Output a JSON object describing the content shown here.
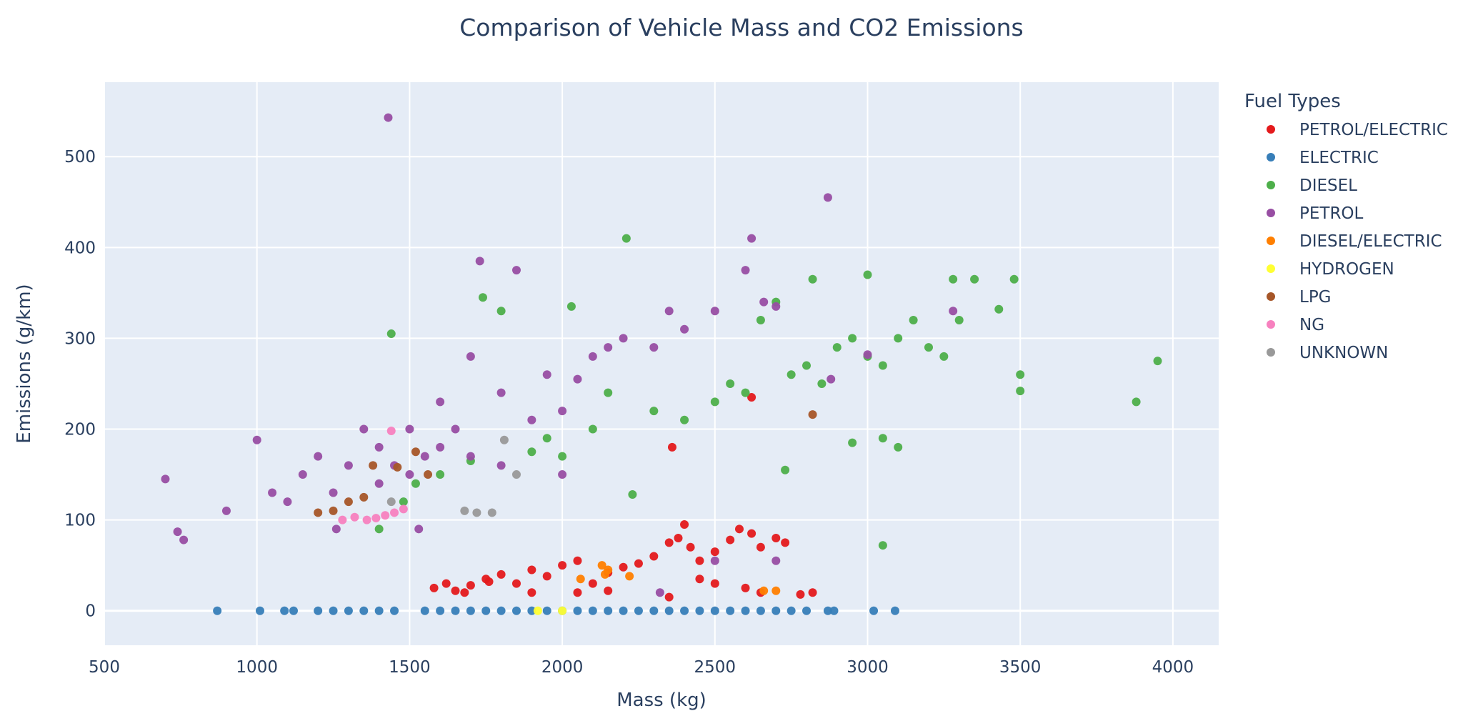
{
  "chart_data": {
    "type": "scatter",
    "title": "Comparison of Vehicle Mass and CO2 Emissions",
    "xlabel": "Mass (kg)",
    "ylabel": "Emissions (g/km)",
    "xlim": [
      500,
      4150
    ],
    "ylim": [
      -38,
      582
    ],
    "xticks": [
      500,
      1000,
      1500,
      2000,
      2500,
      3000,
      3500,
      4000
    ],
    "yticks": [
      0,
      100,
      200,
      300,
      400,
      500
    ],
    "grid": true,
    "plot_bg": "#e5ecf6",
    "legend": {
      "title": "Fuel Types",
      "position": "right"
    },
    "series": [
      {
        "name": "PETROL/ELECTRIC",
        "color": "#e41a1c",
        "points": [
          [
            1580,
            25
          ],
          [
            1620,
            30
          ],
          [
            1650,
            22
          ],
          [
            1700,
            28
          ],
          [
            1750,
            35
          ],
          [
            1800,
            40
          ],
          [
            1850,
            30
          ],
          [
            1900,
            45
          ],
          [
            1950,
            38
          ],
          [
            2000,
            50
          ],
          [
            2050,
            55
          ],
          [
            2100,
            30
          ],
          [
            2150,
            42
          ],
          [
            2200,
            48
          ],
          [
            2250,
            52
          ],
          [
            2300,
            60
          ],
          [
            2350,
            75
          ],
          [
            2380,
            80
          ],
          [
            2400,
            95
          ],
          [
            2420,
            70
          ],
          [
            2450,
            55
          ],
          [
            2500,
            65
          ],
          [
            2550,
            78
          ],
          [
            2580,
            90
          ],
          [
            2620,
            85
          ],
          [
            2650,
            70
          ],
          [
            2700,
            80
          ],
          [
            2730,
            75
          ],
          [
            2600,
            25
          ],
          [
            2650,
            20
          ],
          [
            2780,
            18
          ],
          [
            2820,
            20
          ],
          [
            2360,
            180
          ],
          [
            2620,
            235
          ],
          [
            1680,
            20
          ],
          [
            1760,
            32
          ],
          [
            1900,
            20
          ],
          [
            2050,
            20
          ],
          [
            2150,
            22
          ],
          [
            2350,
            15
          ],
          [
            2450,
            35
          ],
          [
            2500,
            30
          ]
        ]
      },
      {
        "name": "ELECTRIC",
        "color": "#377eb8",
        "points": [
          [
            870,
            0
          ],
          [
            1010,
            0
          ],
          [
            1090,
            0
          ],
          [
            1120,
            0
          ],
          [
            1200,
            0
          ],
          [
            1250,
            0
          ],
          [
            1300,
            0
          ],
          [
            1350,
            0
          ],
          [
            1400,
            0
          ],
          [
            1450,
            0
          ],
          [
            1550,
            0
          ],
          [
            1600,
            0
          ],
          [
            1650,
            0
          ],
          [
            1700,
            0
          ],
          [
            1750,
            0
          ],
          [
            1800,
            0
          ],
          [
            1850,
            0
          ],
          [
            1900,
            0
          ],
          [
            1950,
            0
          ],
          [
            2000,
            0
          ],
          [
            2050,
            0
          ],
          [
            2100,
            0
          ],
          [
            2150,
            0
          ],
          [
            2200,
            0
          ],
          [
            2250,
            0
          ],
          [
            2300,
            0
          ],
          [
            2350,
            0
          ],
          [
            2400,
            0
          ],
          [
            2450,
            0
          ],
          [
            2500,
            0
          ],
          [
            2550,
            0
          ],
          [
            2600,
            0
          ],
          [
            2650,
            0
          ],
          [
            2700,
            0
          ],
          [
            2750,
            0
          ],
          [
            2800,
            0
          ],
          [
            2870,
            0
          ],
          [
            2890,
            0
          ],
          [
            3020,
            0
          ],
          [
            3090,
            0
          ]
        ]
      },
      {
        "name": "DIESEL",
        "color": "#4daf4a",
        "points": [
          [
            1400,
            90
          ],
          [
            1440,
            305
          ],
          [
            1480,
            120
          ],
          [
            1520,
            140
          ],
          [
            1600,
            150
          ],
          [
            1700,
            165
          ],
          [
            1740,
            345
          ],
          [
            1800,
            330
          ],
          [
            1900,
            175
          ],
          [
            1950,
            190
          ],
          [
            2000,
            170
          ],
          [
            2030,
            335
          ],
          [
            2100,
            200
          ],
          [
            2150,
            240
          ],
          [
            2210,
            410
          ],
          [
            2230,
            128
          ],
          [
            2300,
            220
          ],
          [
            2400,
            210
          ],
          [
            2500,
            230
          ],
          [
            2550,
            250
          ],
          [
            2600,
            240
          ],
          [
            2650,
            320
          ],
          [
            2700,
            340
          ],
          [
            2730,
            155
          ],
          [
            2750,
            260
          ],
          [
            2800,
            270
          ],
          [
            2820,
            365
          ],
          [
            2850,
            250
          ],
          [
            2900,
            290
          ],
          [
            2950,
            300
          ],
          [
            3000,
            370
          ],
          [
            3000,
            280
          ],
          [
            3050,
            270
          ],
          [
            3050,
            190
          ],
          [
            3100,
            300
          ],
          [
            3150,
            320
          ],
          [
            3200,
            290
          ],
          [
            3250,
            280
          ],
          [
            3280,
            365
          ],
          [
            3300,
            320
          ],
          [
            3350,
            365
          ],
          [
            3430,
            332
          ],
          [
            3480,
            365
          ],
          [
            3500,
            260
          ],
          [
            3500,
            242
          ],
          [
            3050,
            72
          ],
          [
            3880,
            230
          ],
          [
            3950,
            275
          ],
          [
            2950,
            185
          ],
          [
            3100,
            180
          ]
        ]
      },
      {
        "name": "PETROL",
        "color": "#984ea3",
        "points": [
          [
            700,
            145
          ],
          [
            740,
            87
          ],
          [
            760,
            78
          ],
          [
            900,
            110
          ],
          [
            1000,
            188
          ],
          [
            1050,
            130
          ],
          [
            1100,
            120
          ],
          [
            1150,
            150
          ],
          [
            1200,
            170
          ],
          [
            1250,
            130
          ],
          [
            1300,
            160
          ],
          [
            1350,
            200
          ],
          [
            1400,
            180
          ],
          [
            1430,
            543
          ],
          [
            1450,
            160
          ],
          [
            1500,
            200
          ],
          [
            1550,
            170
          ],
          [
            1600,
            230
          ],
          [
            1650,
            200
          ],
          [
            1700,
            280
          ],
          [
            1730,
            385
          ],
          [
            1800,
            240
          ],
          [
            1850,
            375
          ],
          [
            1900,
            210
          ],
          [
            1950,
            260
          ],
          [
            2000,
            220
          ],
          [
            2050,
            255
          ],
          [
            2100,
            280
          ],
          [
            2150,
            290
          ],
          [
            2200,
            300
          ],
          [
            2300,
            290
          ],
          [
            2350,
            330
          ],
          [
            2400,
            310
          ],
          [
            2500,
            330
          ],
          [
            2600,
            375
          ],
          [
            2620,
            410
          ],
          [
            2660,
            340
          ],
          [
            2700,
            335
          ],
          [
            2870,
            455
          ],
          [
            3000,
            282
          ],
          [
            3280,
            330
          ],
          [
            2000,
            150
          ],
          [
            1800,
            160
          ],
          [
            1600,
            180
          ],
          [
            1400,
            140
          ],
          [
            1500,
            150
          ],
          [
            1700,
            170
          ],
          [
            2320,
            20
          ],
          [
            2500,
            55
          ],
          [
            2700,
            55
          ],
          [
            2880,
            255
          ],
          [
            1530,
            90
          ],
          [
            1260,
            90
          ]
        ]
      },
      {
        "name": "DIESEL/ELECTRIC",
        "color": "#ff7f00",
        "points": [
          [
            2060,
            35
          ],
          [
            2130,
            50
          ],
          [
            2140,
            40
          ],
          [
            2150,
            45
          ],
          [
            2220,
            38
          ],
          [
            2660,
            22
          ],
          [
            2700,
            22
          ]
        ]
      },
      {
        "name": "HYDROGEN",
        "color": "#ffff33",
        "points": [
          [
            1920,
            0
          ],
          [
            2000,
            0
          ]
        ]
      },
      {
        "name": "LPG",
        "color": "#a65628",
        "points": [
          [
            1200,
            108
          ],
          [
            1250,
            110
          ],
          [
            1300,
            120
          ],
          [
            1350,
            125
          ],
          [
            1380,
            160
          ],
          [
            1460,
            158
          ],
          [
            1520,
            175
          ],
          [
            1560,
            150
          ],
          [
            2820,
            216
          ]
        ]
      },
      {
        "name": "NG",
        "color": "#f781bf",
        "points": [
          [
            1280,
            100
          ],
          [
            1320,
            103
          ],
          [
            1360,
            100
          ],
          [
            1390,
            102
          ],
          [
            1420,
            105
          ],
          [
            1450,
            108
          ],
          [
            1480,
            112
          ],
          [
            1440,
            198
          ]
        ]
      },
      {
        "name": "UNKNOWN",
        "color": "#999999",
        "points": [
          [
            1440,
            120
          ],
          [
            1680,
            110
          ],
          [
            1720,
            108
          ],
          [
            1770,
            108
          ],
          [
            1810,
            188
          ],
          [
            1850,
            150
          ]
        ]
      }
    ]
  }
}
